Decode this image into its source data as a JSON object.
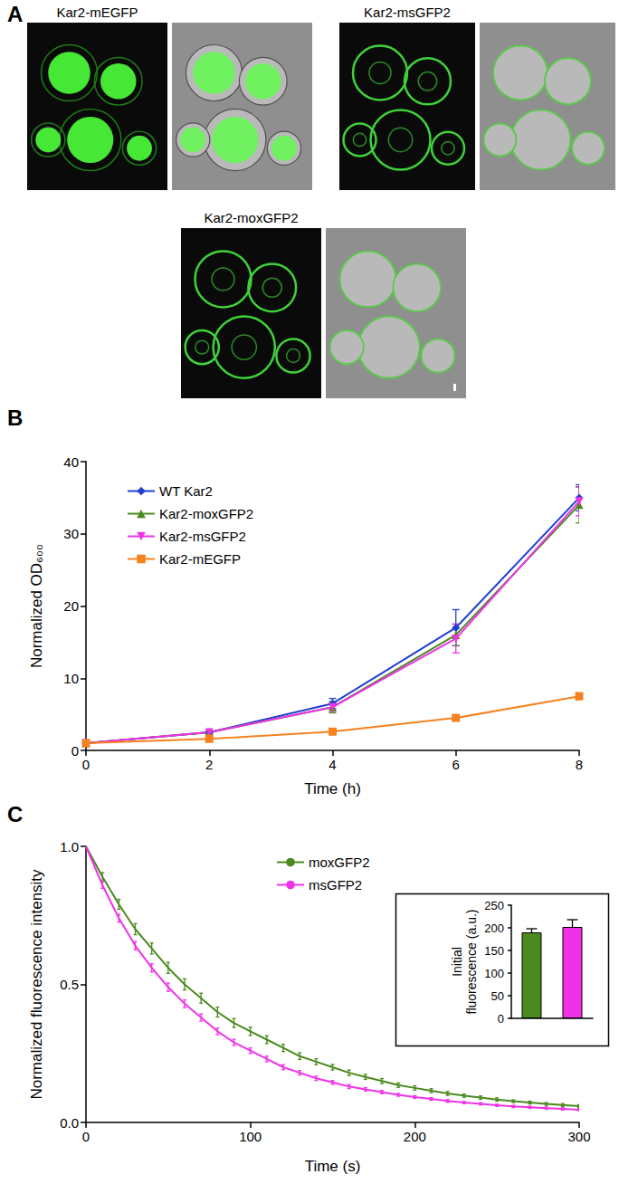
{
  "panel_a": {
    "label": "A",
    "images": [
      {
        "title": "Kar2-mEGFP"
      },
      {
        "title": "Kar2-msGFP2"
      },
      {
        "title": "Kar2-moxGFP2"
      }
    ]
  },
  "chart_data": [
    {
      "type": "line",
      "annotation": "B",
      "xlabel": "Time (h)",
      "ylabel": "Normalized OD₆₀₀",
      "x": [
        0,
        2,
        4,
        6,
        8
      ],
      "xlim": [
        0,
        8
      ],
      "xticks": [
        0,
        2,
        4,
        6,
        8
      ],
      "ylim": [
        0,
        40
      ],
      "yticks": [
        0,
        10,
        20,
        30,
        40
      ],
      "grid": false,
      "legend": "top-left",
      "series": [
        {
          "name": "WT Kar2",
          "color": "#1f3fd0",
          "marker": "diamond",
          "values": [
            1,
            2.5,
            6.5,
            17,
            35
          ],
          "errors": [
            0,
            0.2,
            0.7,
            2.5,
            1.8
          ]
        },
        {
          "name": "Kar2-moxGFP2",
          "color": "#4a8a1e",
          "marker": "triangle",
          "values": [
            1,
            2.5,
            6,
            16,
            34
          ],
          "errors": [
            0,
            0.2,
            0.8,
            1.5,
            2.5
          ]
        },
        {
          "name": "Kar2-msGFP2",
          "color": "#f032e6",
          "marker": "triangle_down",
          "values": [
            1,
            2.5,
            6,
            15.5,
            34.5
          ],
          "errors": [
            0,
            0.2,
            0.6,
            2,
            2
          ]
        },
        {
          "name": "Kar2-mEGFP",
          "color": "#f58220",
          "marker": "square",
          "values": [
            1,
            1.6,
            2.6,
            4.5,
            7.5
          ],
          "errors": [
            0,
            0.1,
            0.2,
            0.2,
            0.5
          ]
        }
      ]
    },
    {
      "type": "line",
      "annotation": "C",
      "xlabel": "Time (s)",
      "ylabel": "Normalized fluorescence intensity",
      "x": [
        0,
        10,
        20,
        30,
        40,
        50,
        60,
        70,
        80,
        90,
        100,
        110,
        120,
        130,
        140,
        150,
        160,
        170,
        180,
        190,
        200,
        210,
        220,
        230,
        240,
        250,
        260,
        270,
        280,
        290,
        300
      ],
      "xlim": [
        0,
        300
      ],
      "xticks": [
        0,
        100,
        200,
        300
      ],
      "ylim": [
        0,
        1
      ],
      "yticks": [
        {
          "value": 0,
          "label": "0.0"
        },
        {
          "value": 0.5,
          "label": "0.5"
        },
        {
          "value": 1,
          "label": "1.0"
        }
      ],
      "grid": false,
      "legend": "top",
      "series": [
        {
          "name": "moxGFP2",
          "color": "#4a8a1e",
          "marker": "none",
          "values": [
            1.0,
            0.89,
            0.79,
            0.7,
            0.63,
            0.56,
            0.5,
            0.45,
            0.4,
            0.36,
            0.33,
            0.3,
            0.27,
            0.24,
            0.22,
            0.2,
            0.18,
            0.165,
            0.15,
            0.135,
            0.125,
            0.115,
            0.105,
            0.097,
            0.09,
            0.083,
            0.077,
            0.072,
            0.067,
            0.063,
            0.059
          ],
          "errors": [
            0,
            0.015,
            0.018,
            0.02,
            0.02,
            0.02,
            0.02,
            0.018,
            0.018,
            0.016,
            0.015,
            0.014,
            0.013,
            0.012,
            0.011,
            0.01,
            0.01,
            0.009,
            0.009,
            0.008,
            0.008,
            0.007,
            0.007,
            0.006,
            0.006,
            0.006,
            0.005,
            0.005,
            0.005,
            0.005,
            0.005
          ]
        },
        {
          "name": "msGFP2",
          "color": "#f032e6",
          "marker": "none",
          "values": [
            1.0,
            0.86,
            0.74,
            0.64,
            0.56,
            0.49,
            0.43,
            0.38,
            0.33,
            0.29,
            0.26,
            0.23,
            0.2,
            0.18,
            0.16,
            0.145,
            0.13,
            0.12,
            0.11,
            0.1,
            0.092,
            0.085,
            0.078,
            0.072,
            0.067,
            0.062,
            0.058,
            0.055,
            0.052,
            0.049,
            0.046
          ],
          "errors": [
            0,
            0.012,
            0.014,
            0.015,
            0.015,
            0.015,
            0.014,
            0.013,
            0.012,
            0.011,
            0.01,
            0.01,
            0.009,
            0.008,
            0.008,
            0.007,
            0.007,
            0.006,
            0.006,
            0.005,
            0.005,
            0.005,
            0.005,
            0.004,
            0.004,
            0.004,
            0.004,
            0.004,
            0.004,
            0.004,
            0.004
          ]
        }
      ]
    },
    {
      "type": "bar",
      "ylabel": "Initial fluorescence (a.u.)",
      "categories": [
        null,
        null
      ],
      "values": [
        190,
        202
      ],
      "errors": [
        8,
        16
      ],
      "colors": [
        "#4a8a1e",
        "#f032e6"
      ],
      "ylim": [
        0,
        250
      ],
      "yticks": [
        0,
        50,
        100,
        150,
        200,
        250
      ],
      "tick_labels": "y",
      "grid": false
    }
  ]
}
